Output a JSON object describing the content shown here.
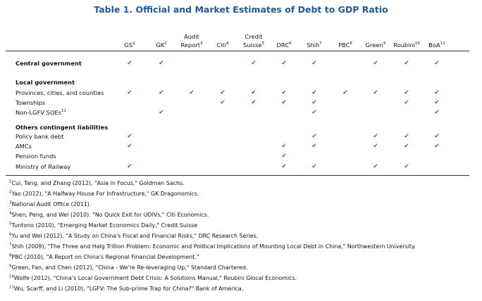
{
  "title": "Table 1. Official and Market Estimates of Debt to GDP Ratio",
  "columns": [
    {
      "id": "gs",
      "line1": "",
      "line2": "GS",
      "sup": "1"
    },
    {
      "id": "gk",
      "line1": "",
      "line2": "GK",
      "sup": "2"
    },
    {
      "id": "aud",
      "line1": "Audit",
      "line2": "Report",
      "sup": "3"
    },
    {
      "id": "citi",
      "line1": "",
      "line2": "Citi",
      "sup": "4"
    },
    {
      "id": "cs",
      "line1": "Credit",
      "line2": "Suisse",
      "sup": "5"
    },
    {
      "id": "drc",
      "line1": "",
      "line2": "DRC",
      "sup": "6"
    },
    {
      "id": "shih",
      "line1": "",
      "line2": "Shih",
      "sup": "7"
    },
    {
      "id": "pbc",
      "line1": "",
      "line2": "PBC",
      "sup": "8"
    },
    {
      "id": "grn",
      "line1": "",
      "line2": "Green",
      "sup": "9"
    },
    {
      "id": "roub",
      "line1": "",
      "line2": "Roubini",
      "sup": "10"
    },
    {
      "id": "boa",
      "line1": "",
      "line2": "BoA",
      "sup": "11"
    }
  ],
  "rows": [
    {
      "label": "Central government",
      "bold": true,
      "sup": "",
      "checks": [
        1,
        1,
        0,
        0,
        1,
        1,
        1,
        0,
        1,
        1,
        1
      ]
    },
    {
      "label": "Local government",
      "bold": true,
      "sup": "",
      "checks": [
        0,
        0,
        0,
        0,
        0,
        0,
        0,
        0,
        0,
        0,
        0
      ]
    },
    {
      "label": "Provinces, cities, and counties",
      "bold": false,
      "sup": "",
      "checks": [
        1,
        1,
        1,
        1,
        1,
        1,
        1,
        1,
        1,
        1,
        1
      ]
    },
    {
      "label": "Townships",
      "bold": false,
      "sup": "",
      "checks": [
        0,
        0,
        0,
        1,
        1,
        1,
        1,
        0,
        0,
        1,
        1
      ]
    },
    {
      "label": "Non-LGFV SOEs",
      "bold": false,
      "sup": "11",
      "checks": [
        0,
        1,
        0,
        0,
        0,
        0,
        1,
        0,
        0,
        0,
        1
      ]
    },
    {
      "label": "Others contingent liabilities",
      "bold": true,
      "sup": "",
      "checks": [
        0,
        0,
        0,
        0,
        0,
        0,
        0,
        0,
        0,
        0,
        0
      ]
    },
    {
      "label": "Policy bank debt",
      "bold": false,
      "sup": "",
      "checks": [
        1,
        0,
        0,
        0,
        0,
        0,
        1,
        0,
        1,
        1,
        1
      ]
    },
    {
      "label": "AMCs",
      "bold": false,
      "sup": "",
      "checks": [
        1,
        0,
        0,
        0,
        0,
        1,
        1,
        0,
        1,
        1,
        1
      ]
    },
    {
      "label": "Pension funds",
      "bold": false,
      "sup": "",
      "checks": [
        0,
        0,
        0,
        0,
        0,
        1,
        0,
        0,
        0,
        0,
        0
      ]
    },
    {
      "label": "Ministry of Railway",
      "bold": false,
      "sup": "",
      "checks": [
        1,
        0,
        0,
        0,
        0,
        1,
        1,
        0,
        1,
        1,
        0
      ]
    }
  ],
  "check_symbol": "✔",
  "check_color": "#2e8b2e",
  "title_color": "#1f5a9a",
  "footnotes": [
    {
      "sup": "1",
      "text": "Cui, Tang, and Zhang (2012), \"Asia in Focus,\" Goldman Sachs."
    },
    {
      "sup": "2",
      "text": "Yao (2012), \"A Halfway House For Infrastructure,\" GK Dragonomics."
    },
    {
      "sup": "3",
      "text": "National Audit Office (2011)."
    },
    {
      "sup": "4",
      "text": "Shen, Peng, and Wei (2010). \"No Quick Exit for UDIVs,\" Citi Economics."
    },
    {
      "sup": "5",
      "text": "Tuntono (2010), \"Emerging Market Economics Daily,\" Credit Suisse"
    },
    {
      "sup": "6",
      "text": "Yu and Wei (2012), \"A Study on China's Fiscal and Financial Risks,\" DRC Research Series."
    },
    {
      "sup": "7",
      "text": "Shih (2009), \"The Three and Halg Trillion Problem: Economic and Political Implications of Mounting Local Debt in China,\" Northwestern University."
    },
    {
      "sup": "8",
      "text": "PBC (2010), \"A Report on China's Regional Financial Development.\""
    },
    {
      "sup": "9",
      "text": "Green, Fan, and Chen (2012), \"China - We're Re-leveraging Up,\" Standard Chartered."
    },
    {
      "sup": "10",
      "text": "Wolfe (2012), \"China's Local Government Debt Crisis: A Solutions Manual,\" Roubini Glocal Economics."
    },
    {
      "sup": "11",
      "text": "Wu, Scarff, and Li (2010), \"LGFV: The Sub-prime Trap for China?\" Bank of America."
    }
  ]
}
